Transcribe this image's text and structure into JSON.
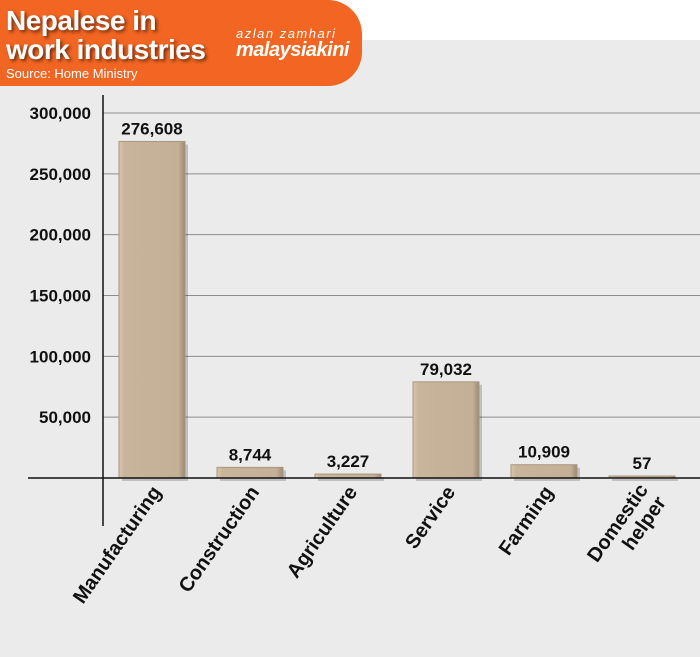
{
  "header": {
    "title_line1": "Nepalese in",
    "title_line2": "work industries",
    "source": "Source: Home Ministry",
    "author": "azlan zamhari",
    "brand": "malaysiakini"
  },
  "colors": {
    "banner": "#f26522",
    "bar": "#c8b49a",
    "panel": "#ebebeb"
  },
  "chart_data": {
    "type": "bar",
    "title": "Nepalese in work industries",
    "categories": [
      [
        "Manufacturing"
      ],
      [
        "Construction"
      ],
      [
        "Agriculture"
      ],
      [
        "Service"
      ],
      [
        "Farming"
      ],
      [
        "Domestic",
        "helper"
      ]
    ],
    "values": [
      276608,
      8744,
      3227,
      79032,
      10909,
      57
    ],
    "value_labels": [
      "276,608",
      "8,744",
      "3,227",
      "79,032",
      "10,909",
      "57"
    ],
    "y_ticks": [
      50000,
      100000,
      150000,
      200000,
      250000,
      300000
    ],
    "y_tick_labels": [
      "50,000",
      "100,000",
      "150,000",
      "200,000",
      "250,000",
      "300,000"
    ],
    "ylim": [
      0,
      300000
    ],
    "grid": true
  }
}
